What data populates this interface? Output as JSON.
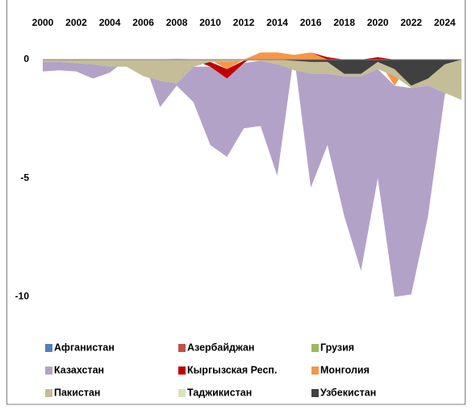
{
  "chart_data": {
    "type": "stacked_area",
    "x": [
      2000,
      2001,
      2002,
      2003,
      2004,
      2005,
      2006,
      2007,
      2008,
      2009,
      2010,
      2011,
      2012,
      2013,
      2014,
      2015,
      2016,
      2017,
      2018,
      2019,
      2020,
      2021,
      2022,
      2023,
      2024,
      2025
    ],
    "xlim": [
      2000,
      2025
    ],
    "xticks": [
      2000,
      2002,
      2004,
      2006,
      2008,
      2010,
      2012,
      2014,
      2016,
      2018,
      2020,
      2022,
      2024
    ],
    "ylim": [
      -10.9,
      1.9
    ],
    "yticks": [
      0,
      -5,
      -10
    ],
    "series": [
      {
        "name": "Афганистан",
        "color": "#4f81bd",
        "values": [
          0,
          0,
          0,
          0,
          0,
          0,
          0,
          0,
          0,
          0,
          0,
          0,
          0,
          0,
          0,
          0,
          0,
          0,
          0,
          0,
          0,
          0,
          0,
          0,
          0,
          0
        ]
      },
      {
        "name": "Азербайджан",
        "color": "#c0504d",
        "values": [
          0,
          0,
          0,
          0,
          0,
          0,
          0,
          0,
          0,
          0,
          0,
          0,
          0,
          0,
          0,
          0,
          0,
          0,
          0,
          0,
          0,
          0,
          0,
          0,
          0,
          0
        ]
      },
      {
        "name": "Грузия",
        "color": "#9bbb59",
        "values": [
          0,
          0,
          0,
          0,
          0,
          0,
          0,
          0,
          0,
          0,
          0,
          0,
          0,
          0,
          0,
          0,
          0,
          0,
          0,
          0,
          0,
          0,
          0,
          0,
          0,
          0
        ]
      },
      {
        "name": "Казахстан",
        "color": "#b3a2c7",
        "values": [
          -0.4,
          -0.35,
          -0.35,
          -0.6,
          -0.25,
          0,
          0,
          -1.1,
          -0.1,
          -1.5,
          -3.3,
          -3.3,
          -2.75,
          -2.75,
          -4.7,
          0,
          -4.8,
          -3.0,
          -5.9,
          -8.2,
          -4.6,
          -8.9,
          -8.7,
          -5.5,
          -0.1,
          0
        ]
      },
      {
        "name": "Кыргызская Респ.",
        "color": "#c00000",
        "values": [
          0,
          0,
          0,
          0,
          0,
          0,
          0,
          0,
          0,
          0,
          -0.2,
          -0.4,
          -0.1,
          0,
          0,
          0,
          0,
          0.1,
          0,
          0,
          0.1,
          0,
          0,
          0,
          0,
          0
        ]
      },
      {
        "name": "Монголия",
        "color": "#f79646",
        "values": [
          0,
          0,
          0,
          0,
          0,
          0,
          0,
          0,
          0,
          0,
          0,
          -0.3,
          0,
          0.3,
          0.3,
          0.2,
          0.3,
          0,
          0,
          0,
          0,
          -0.4,
          0,
          0,
          0,
          0
        ]
      },
      {
        "name": "Пакистан",
        "color": "#c4bd97",
        "values": [
          -0.1,
          -0.1,
          -0.15,
          -0.2,
          -0.3,
          -0.3,
          -0.7,
          -0.9,
          -1.0,
          -0.3,
          -0.1,
          -0.1,
          -0.05,
          -0.05,
          -0.2,
          -0.4,
          -0.5,
          -0.5,
          -0.1,
          -0.1,
          -0.3,
          -0.3,
          -0.1,
          -0.3,
          -1.2,
          -1.7
        ]
      },
      {
        "name": "Таджикистан",
        "color": "#d7e4bd",
        "values": [
          0,
          0,
          0,
          0,
          0,
          0,
          0,
          0,
          0.05,
          0,
          0,
          0,
          0,
          0,
          0,
          0,
          0,
          0,
          0,
          0,
          0,
          0,
          0,
          0,
          0,
          0
        ]
      },
      {
        "name": "Узбекистан",
        "color": "#404040",
        "values": [
          0,
          0,
          0,
          0,
          0,
          0,
          0,
          0,
          0,
          0,
          0,
          0,
          0,
          0,
          0,
          -0.05,
          -0.1,
          -0.1,
          -0.6,
          -0.6,
          -0.1,
          -0.4,
          -1.1,
          -0.8,
          -0.2,
          0
        ]
      }
    ]
  }
}
